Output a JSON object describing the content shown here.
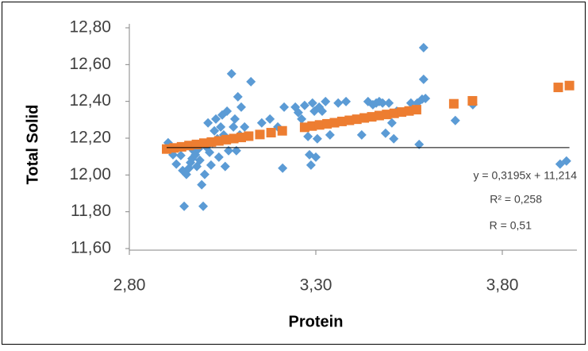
{
  "chart_data": {
    "type": "scatter",
    "x_label": "Protein",
    "y_label": "Total Solid",
    "xlim": [
      2.8,
      4.0
    ],
    "ylim": [
      11.6,
      12.8
    ],
    "xticks": [
      {
        "value": 2.8,
        "label": "2,80"
      },
      {
        "value": 3.3,
        "label": "3,30"
      },
      {
        "value": 3.8,
        "label": "3,80"
      }
    ],
    "yticks": [
      {
        "value": 11.6,
        "label": "11,60"
      },
      {
        "value": 11.8,
        "label": "11,80"
      },
      {
        "value": 12.0,
        "label": "12,00"
      },
      {
        "value": 12.2,
        "label": "12,20"
      },
      {
        "value": 12.4,
        "label": "12,40"
      },
      {
        "value": 12.6,
        "label": "12,60"
      },
      {
        "value": 12.8,
        "label": "12,80"
      }
    ],
    "grid": false,
    "series": [
      {
        "color": "#5b9bd5",
        "marker": "diamond",
        "x": [
          2.904,
          2.917,
          2.926,
          2.938,
          2.943,
          2.947,
          2.953,
          2.96,
          2.964,
          2.968,
          2.972,
          2.977,
          2.981,
          2.985,
          2.989,
          2.994,
          2.998,
          3.002,
          3.006,
          3.011,
          3.015,
          3.019,
          3.023,
          3.028,
          3.032,
          3.036,
          3.04,
          3.045,
          3.049,
          3.053,
          3.057,
          3.062,
          3.066,
          3.07,
          3.074,
          3.079,
          3.083,
          3.087,
          3.091,
          3.096,
          3.1,
          3.109,
          3.126,
          3.155,
          3.177,
          3.198,
          3.211,
          3.215,
          3.245,
          3.253,
          3.262,
          3.27,
          3.279,
          3.283,
          3.287,
          3.291,
          3.296,
          3.3,
          3.304,
          3.309,
          3.317,
          3.326,
          3.338,
          3.36,
          3.381,
          3.423,
          3.44,
          3.453,
          3.462,
          3.47,
          3.479,
          3.487,
          3.496,
          3.504,
          3.509,
          3.517,
          3.555,
          3.572,
          3.577,
          3.585,
          3.589,
          3.589,
          3.594,
          3.674,
          3.721,
          3.955,
          3.972
        ],
        "values": [
          12.175,
          12.11,
          12.059,
          12.106,
          12.024,
          11.83,
          12.003,
          12.037,
          12.067,
          12.089,
          12.132,
          12.11,
          12.046,
          12.141,
          12.08,
          11.947,
          11.83,
          12.003,
          12.153,
          12.283,
          12.123,
          12.054,
          12.175,
          12.24,
          12.304,
          12.197,
          12.097,
          12.261,
          12.326,
          12.218,
          12.046,
          12.347,
          12.132,
          12.197,
          12.55,
          12.261,
          12.304,
          12.132,
          12.425,
          12.218,
          12.369,
          12.261,
          12.507,
          12.283,
          12.304,
          12.261,
          12.037,
          12.369,
          12.369,
          12.339,
          12.304,
          12.378,
          12.209,
          12.11,
          12.054,
          12.391,
          12.347,
          12.097,
          12.197,
          12.369,
          12.347,
          12.399,
          12.218,
          12.391,
          12.399,
          12.218,
          12.399,
          12.382,
          12.391,
          12.399,
          12.391,
          12.227,
          12.391,
          12.283,
          12.197,
          12.347,
          12.391,
          12.391,
          12.166,
          12.412,
          12.692,
          12.52,
          12.416,
          12.296,
          12.382,
          12.059,
          12.076
        ]
      },
      {
        "color": "#ed7d31",
        "marker": "square",
        "x": [
          2.9,
          2.92,
          2.94,
          2.96,
          2.98,
          3.0,
          3.02,
          3.04,
          3.06,
          3.08,
          3.1,
          3.12,
          3.15,
          3.18,
          3.21,
          3.27,
          3.29,
          3.31,
          3.33,
          3.35,
          3.37,
          3.39,
          3.41,
          3.43,
          3.45,
          3.47,
          3.49,
          3.51,
          3.53,
          3.55,
          3.57,
          3.67,
          3.72,
          3.95,
          3.98
        ],
        "values": [
          12.141,
          12.147,
          12.153,
          12.16,
          12.166,
          12.173,
          12.179,
          12.185,
          12.192,
          12.198,
          12.204,
          12.211,
          12.22,
          12.23,
          12.24,
          12.259,
          12.266,
          12.272,
          12.278,
          12.284,
          12.291,
          12.297,
          12.303,
          12.31,
          12.316,
          12.323,
          12.329,
          12.335,
          12.342,
          12.348,
          12.355,
          12.387,
          12.403,
          12.476,
          12.486
        ]
      }
    ],
    "reference_line": {
      "color": "#000000",
      "x": [
        2.9,
        3.98
      ],
      "y": 12.149
    },
    "annotations": [
      "y = 0,3195x + 11,214",
      "R² = 0,258",
      "R = 0,51"
    ]
  }
}
